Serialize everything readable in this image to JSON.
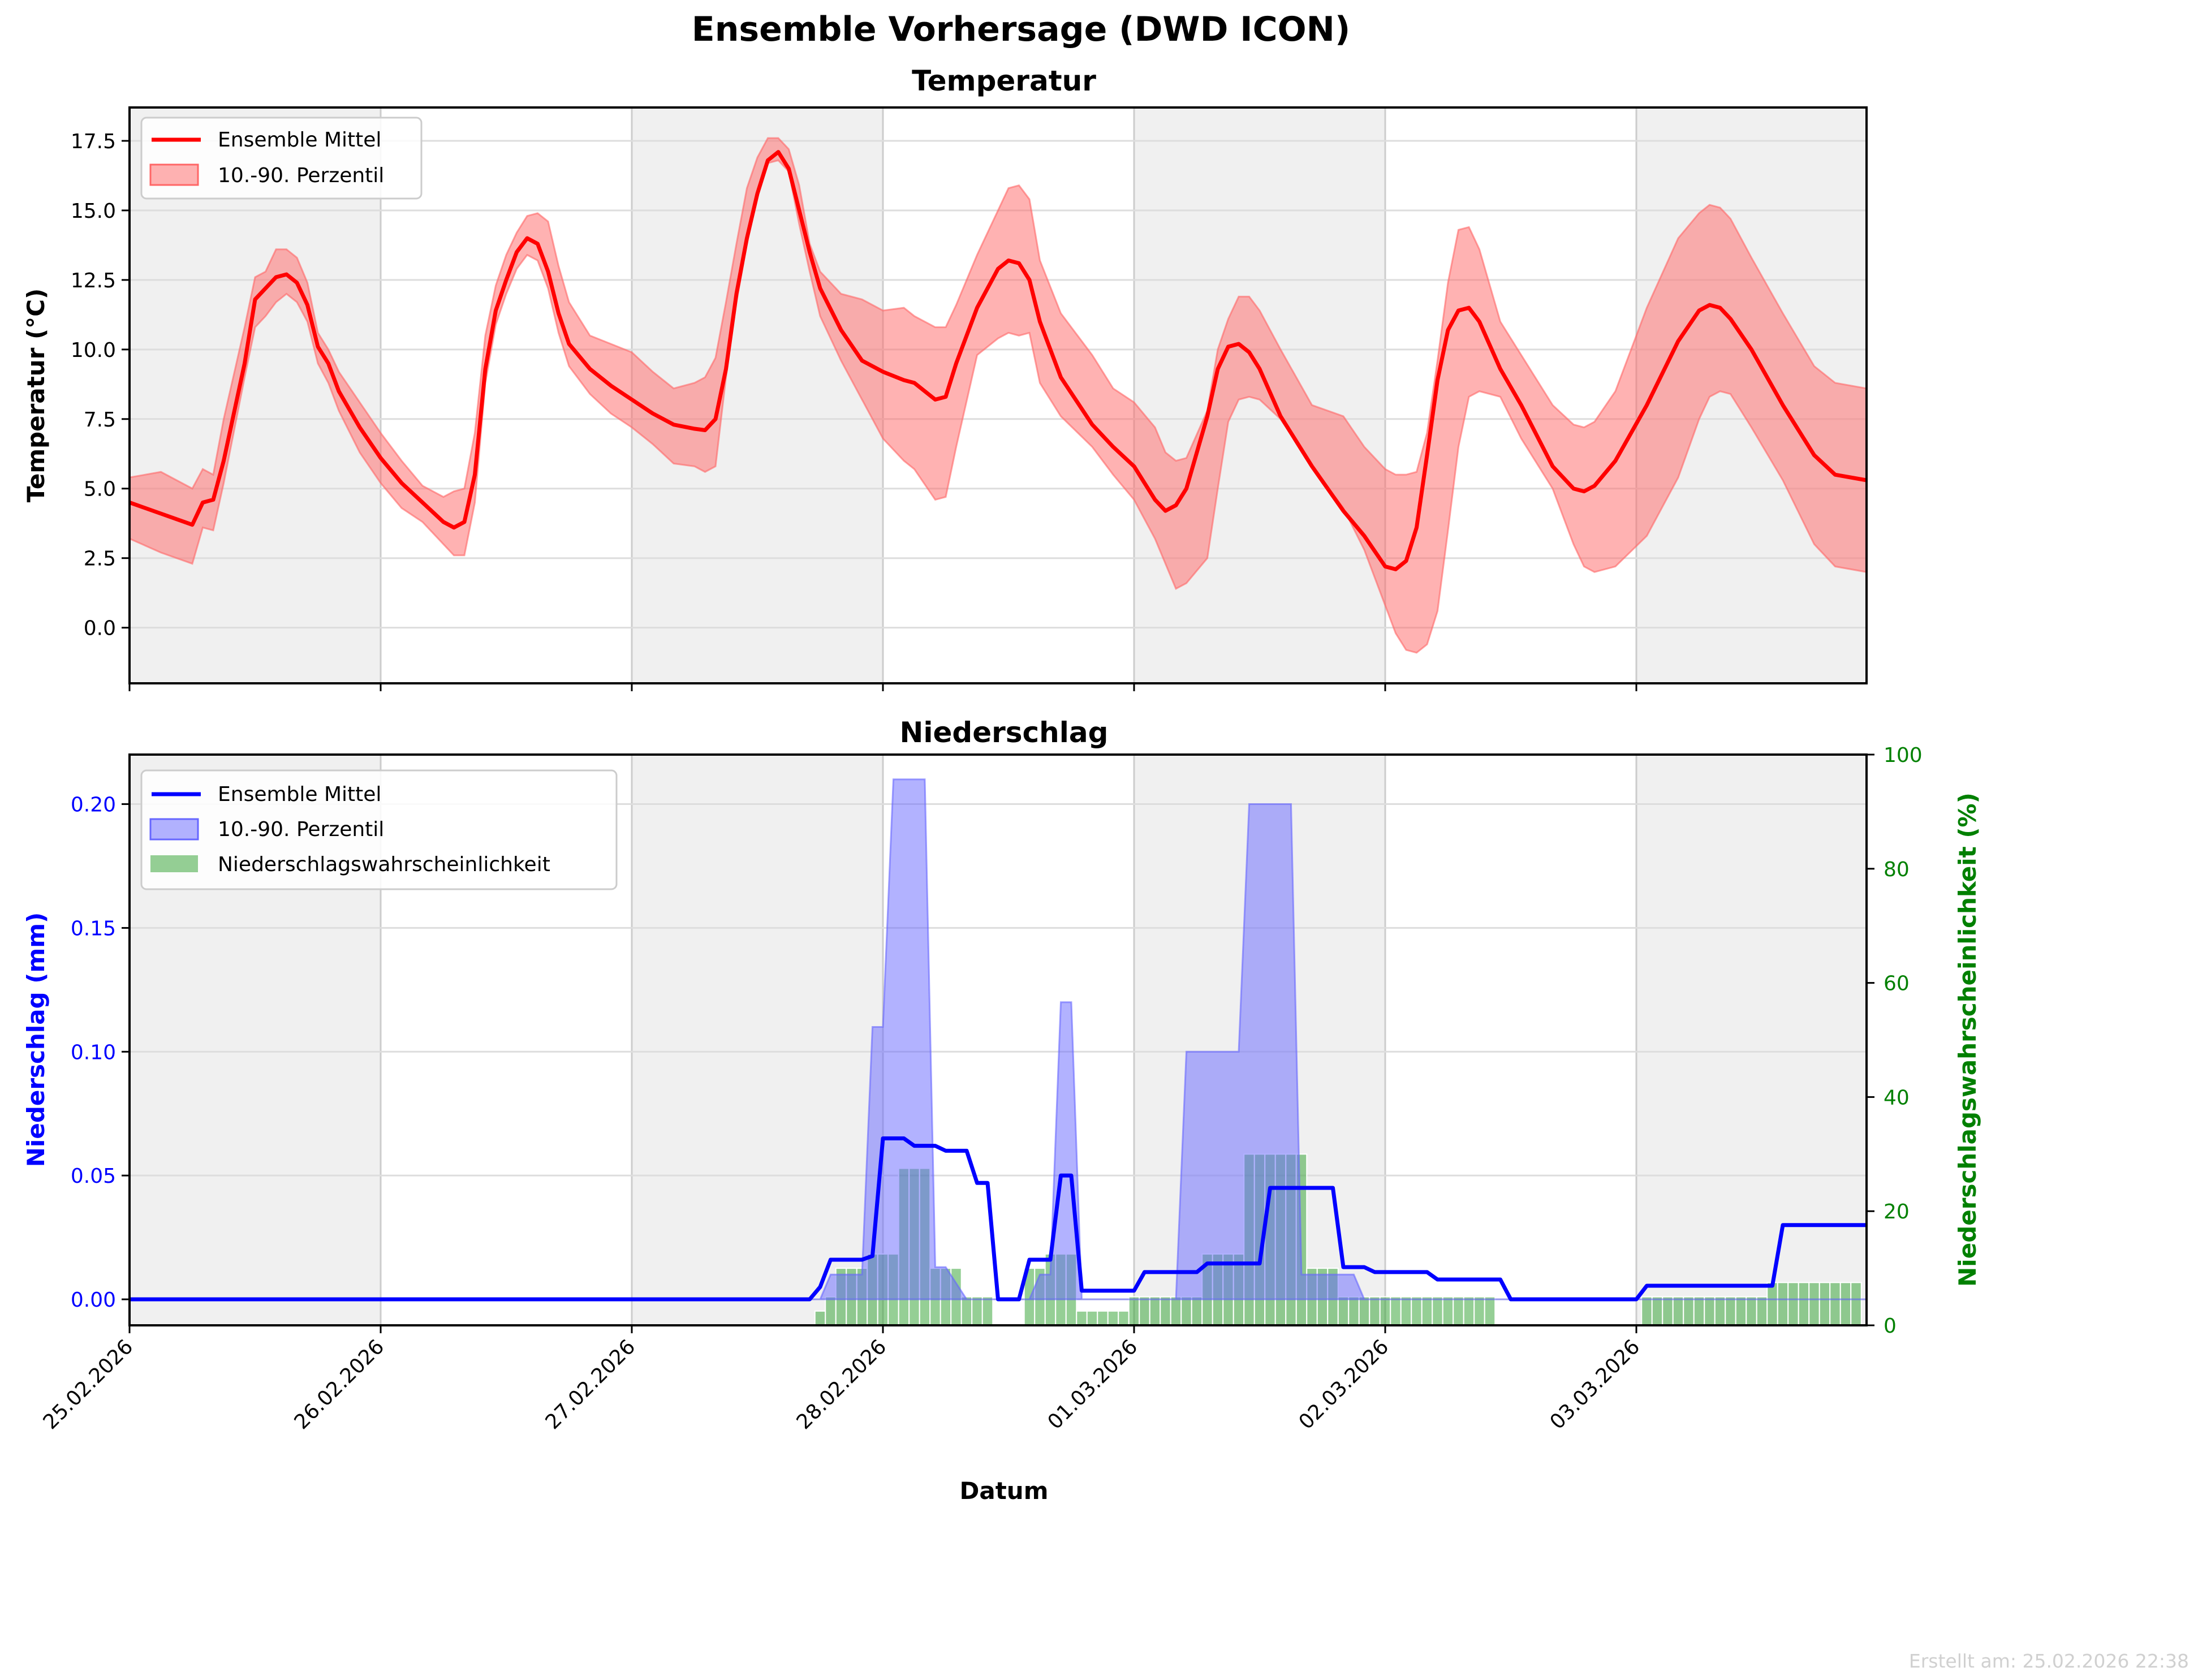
{
  "title": "Ensemble Vorhersage (DWD ICON)",
  "footer": "Erstellt am: 25.02.2026 22:38",
  "colors": {
    "temp_mean": "#ff0000",
    "temp_band": "#ff6666",
    "precip_mean": "#0000ff",
    "precip_band": "#6666ff",
    "probability": "#2ca02c",
    "right_axis": "#008000",
    "shade": "#f0f0f0",
    "grid": "#d9d9d9"
  },
  "chart_data": [
    {
      "type": "line",
      "title": "Temperatur",
      "xlabel": "",
      "ylabel": "Temperatur (°C)",
      "x_unit": "hours since 25.02.2026 00:00",
      "xlim": [
        0,
        166
      ],
      "ylim": [
        -2.0,
        18.7
      ],
      "yticks": [
        "0.0",
        "2.5",
        "5.0",
        "7.5",
        "10.0",
        "12.5",
        "15.0",
        "17.5"
      ],
      "grid": true,
      "legend": {
        "position": "top-left",
        "entries": [
          "Ensemble Mittel",
          "10.-90. Perzentil"
        ]
      },
      "series": [
        {
          "name": "Ensemble Mittel",
          "kind": "line",
          "x": [
            0,
            3,
            6,
            7,
            8,
            9,
            11,
            12,
            13,
            14,
            15,
            16,
            17,
            18,
            19,
            20,
            22,
            24,
            26,
            28,
            30,
            31,
            32,
            33,
            34,
            35,
            36,
            37,
            38,
            39,
            40,
            41,
            42,
            44,
            46,
            48,
            50,
            52,
            54,
            55,
            56,
            57,
            58,
            59,
            60,
            61,
            62,
            63,
            64,
            65,
            66,
            68,
            70,
            72,
            74,
            75,
            77,
            78,
            79,
            81,
            83,
            84,
            85,
            86,
            87,
            89,
            92,
            94,
            96,
            98,
            99,
            100,
            101,
            103,
            104,
            105,
            106,
            107,
            108,
            110,
            113,
            116,
            118,
            120,
            121,
            122,
            123,
            124,
            125,
            126,
            127,
            128,
            129,
            131,
            133,
            136,
            138,
            139,
            140,
            142,
            145,
            148,
            150,
            151,
            152,
            153,
            155,
            158,
            161,
            163,
            166
          ],
          "y": [
            4.5,
            4.1,
            3.7,
            4.5,
            4.6,
            6.0,
            9.5,
            11.8,
            12.2,
            12.6,
            12.7,
            12.4,
            11.6,
            10.1,
            9.5,
            8.5,
            7.2,
            6.1,
            5.2,
            4.5,
            3.8,
            3.6,
            3.8,
            5.5,
            9.3,
            11.4,
            12.5,
            13.5,
            14.0,
            13.8,
            12.8,
            11.3,
            10.2,
            9.3,
            8.7,
            8.2,
            7.7,
            7.3,
            7.15,
            7.1,
            7.5,
            9.3,
            12.0,
            14.0,
            15.6,
            16.8,
            17.1,
            16.5,
            15.0,
            13.5,
            12.2,
            10.7,
            9.6,
            9.2,
            8.9,
            8.8,
            8.2,
            8.3,
            9.5,
            11.5,
            12.9,
            13.2,
            13.1,
            12.5,
            11.0,
            9.0,
            7.3,
            6.5,
            5.8,
            4.6,
            4.2,
            4.4,
            5.0,
            7.6,
            9.3,
            10.1,
            10.2,
            9.9,
            9.3,
            7.6,
            5.8,
            4.2,
            3.3,
            2.2,
            2.1,
            2.4,
            3.6,
            6.2,
            8.9,
            10.7,
            11.4,
            11.5,
            11.0,
            9.3,
            8.0,
            5.8,
            5.0,
            4.9,
            5.1,
            6.0,
            8.0,
            10.3,
            11.4,
            11.6,
            11.5,
            11.1,
            10.0,
            8.0,
            6.2,
            5.5,
            5.3
          ]
        },
        {
          "name": "10.-90. Perzentil",
          "kind": "band",
          "x": [
            0,
            3,
            6,
            7,
            8,
            9,
            11,
            12,
            13,
            14,
            15,
            16,
            17,
            18,
            19,
            20,
            22,
            24,
            26,
            28,
            30,
            31,
            32,
            33,
            34,
            35,
            36,
            37,
            38,
            39,
            40,
            41,
            42,
            44,
            46,
            48,
            50,
            52,
            54,
            55,
            56,
            57,
            58,
            59,
            60,
            61,
            62,
            63,
            64,
            65,
            66,
            68,
            70,
            72,
            74,
            75,
            77,
            78,
            79,
            81,
            83,
            84,
            85,
            86,
            87,
            89,
            92,
            94,
            96,
            98,
            99,
            100,
            101,
            103,
            104,
            105,
            106,
            107,
            108,
            110,
            113,
            116,
            118,
            120,
            121,
            122,
            123,
            124,
            125,
            126,
            127,
            128,
            129,
            131,
            133,
            136,
            138,
            139,
            140,
            142,
            145,
            148,
            150,
            151,
            152,
            153,
            155,
            158,
            161,
            163,
            166
          ],
          "low": [
            3.2,
            2.7,
            2.3,
            3.6,
            3.5,
            5.2,
            9.0,
            10.8,
            11.2,
            11.7,
            12.0,
            11.7,
            11.0,
            9.5,
            8.8,
            7.8,
            6.3,
            5.2,
            4.3,
            3.8,
            3.0,
            2.6,
            2.6,
            4.5,
            8.8,
            10.9,
            12.0,
            12.9,
            13.4,
            13.2,
            12.2,
            10.6,
            9.4,
            8.4,
            7.7,
            7.2,
            6.6,
            5.9,
            5.8,
            5.6,
            5.8,
            9.0,
            11.7,
            13.8,
            15.5,
            16.7,
            16.8,
            16.4,
            14.5,
            12.8,
            11.2,
            9.6,
            8.2,
            6.8,
            6.0,
            5.7,
            4.6,
            4.7,
            6.5,
            9.8,
            10.4,
            10.6,
            10.5,
            10.6,
            8.8,
            7.6,
            6.5,
            5.5,
            4.6,
            3.2,
            2.3,
            1.4,
            1.6,
            2.5,
            5.0,
            7.4,
            8.2,
            8.3,
            8.2,
            7.5,
            5.8,
            4.3,
            2.8,
            0.8,
            -0.2,
            -0.8,
            -0.9,
            -0.6,
            0.6,
            3.5,
            6.5,
            8.3,
            8.5,
            8.3,
            6.8,
            5.0,
            3.0,
            2.2,
            2.0,
            2.2,
            3.3,
            5.4,
            7.5,
            8.3,
            8.5,
            8.4,
            7.2,
            5.3,
            3.0,
            2.2,
            2.0
          ],
          "high": [
            5.4,
            5.6,
            5.0,
            5.7,
            5.5,
            7.5,
            10.8,
            12.6,
            12.8,
            13.6,
            13.6,
            13.3,
            12.4,
            10.6,
            10.0,
            9.2,
            8.1,
            7.0,
            6.0,
            5.1,
            4.7,
            4.9,
            5.0,
            7.0,
            10.5,
            12.3,
            13.4,
            14.2,
            14.8,
            14.9,
            14.6,
            13.0,
            11.7,
            10.5,
            10.2,
            9.9,
            9.2,
            8.6,
            8.8,
            9.0,
            9.7,
            11.7,
            13.8,
            15.8,
            16.9,
            17.6,
            17.6,
            17.2,
            15.9,
            13.8,
            12.8,
            12.0,
            11.8,
            11.4,
            11.5,
            11.2,
            10.8,
            10.8,
            11.6,
            13.4,
            15.0,
            15.8,
            15.9,
            15.4,
            13.2,
            11.3,
            9.8,
            8.6,
            8.1,
            7.2,
            6.3,
            6.0,
            6.1,
            7.8,
            10.0,
            11.1,
            11.9,
            11.9,
            11.4,
            10.0,
            8.0,
            7.6,
            6.5,
            5.7,
            5.5,
            5.5,
            5.6,
            7.0,
            9.6,
            12.4,
            14.3,
            14.4,
            13.6,
            11.0,
            9.8,
            8.0,
            7.3,
            7.2,
            7.4,
            8.5,
            11.5,
            14.0,
            14.9,
            15.2,
            15.1,
            14.7,
            13.3,
            11.3,
            9.4,
            8.8,
            8.6
          ]
        }
      ]
    },
    {
      "type": "line",
      "title": "Niederschlag",
      "xlabel": "Datum",
      "ylabel": "Niederschlag (mm)",
      "ylabel_right": "Niederschlagswahrscheinlichkeit (%)",
      "x_unit": "hours since 25.02.2026 00:00",
      "xlim": [
        0,
        166
      ],
      "ylim": [
        -0.0105,
        0.22
      ],
      "ylim_right": [
        0,
        100
      ],
      "yticks": [
        "0.00",
        "0.05",
        "0.10",
        "0.15",
        "0.20"
      ],
      "yticks_right": [
        "0",
        "20",
        "40",
        "60",
        "80",
        "100"
      ],
      "xticks": [
        "25.02.2026",
        "26.02.2026",
        "27.02.2026",
        "28.02.2026",
        "01.03.2026",
        "02.03.2026",
        "03.03.2026"
      ],
      "grid": true,
      "legend": {
        "position": "top-left",
        "entries": [
          "Ensemble Mittel",
          "10.-90. Perzentil",
          "Niederschlagswahrscheinlichkeit"
        ]
      },
      "series": [
        {
          "name": "Ensemble Mittel",
          "kind": "line",
          "x": [
            0,
            65,
            66,
            67,
            70,
            71,
            72,
            74,
            75,
            77,
            78,
            80,
            81,
            82,
            83,
            85,
            86,
            88,
            89,
            90,
            91,
            96,
            97,
            102,
            103,
            108,
            109,
            115,
            116,
            118,
            119,
            124,
            125,
            131,
            132,
            144,
            145,
            157,
            158,
            166
          ],
          "y": [
            0,
            0,
            0.005,
            0.016,
            0.016,
            0.0175,
            0.065,
            0.065,
            0.062,
            0.062,
            0.06,
            0.06,
            0.047,
            0.047,
            0.0,
            0.0,
            0.016,
            0.016,
            0.05,
            0.05,
            0.0035,
            0.0035,
            0.011,
            0.011,
            0.0145,
            0.0145,
            0.045,
            0.045,
            0.013,
            0.013,
            0.011,
            0.011,
            0.008,
            0.008,
            0.0,
            0.0,
            0.0055,
            0.0055,
            0.03,
            0.03
          ]
        },
        {
          "name": "10.-90. Perzentil",
          "kind": "band",
          "x": [
            0,
            66,
            67,
            70,
            71,
            72,
            73,
            74,
            76,
            77,
            78,
            80,
            81,
            82,
            86,
            87,
            88,
            89,
            90,
            91,
            99,
            100,
            101,
            106,
            107,
            108,
            111,
            112,
            113,
            117,
            118,
            166
          ],
          "low": [
            0,
            0,
            0,
            0,
            0,
            0,
            0,
            0,
            0,
            0,
            0,
            0,
            0,
            0,
            0,
            0,
            0,
            0,
            0,
            0,
            0,
            0,
            0,
            0,
            0,
            0,
            0,
            0,
            0,
            0,
            0,
            0
          ],
          "high": [
            0,
            0,
            0.01,
            0.01,
            0.11,
            0.11,
            0.21,
            0.21,
            0.21,
            0.013,
            0.013,
            0.0,
            0.0,
            0.0,
            0.0,
            0.01,
            0.01,
            0.12,
            0.12,
            0.0,
            0.0,
            0.0,
            0.1,
            0.1,
            0.2,
            0.2,
            0.2,
            0.01,
            0.01,
            0.01,
            0.0,
            0.0
          ]
        },
        {
          "name": "Niederschlagswahrscheinlichkeit",
          "kind": "bar",
          "axis": "right",
          "x": [
            66,
            67,
            68,
            69,
            70,
            71,
            72,
            73,
            74,
            75,
            76,
            77,
            78,
            79,
            80,
            81,
            82,
            83,
            84,
            85,
            86,
            87,
            88,
            89,
            90,
            91,
            92,
            93,
            94,
            95,
            96,
            97,
            98,
            99,
            100,
            101,
            102,
            103,
            104,
            105,
            106,
            107,
            108,
            109,
            110,
            111,
            112,
            113,
            114,
            115,
            116,
            117,
            118,
            119,
            120,
            121,
            122,
            123,
            124,
            125,
            126,
            127,
            128,
            129,
            130,
            145,
            146,
            147,
            148,
            149,
            150,
            151,
            152,
            153,
            154,
            155,
            156,
            157,
            158,
            159,
            160,
            161,
            162,
            163,
            164,
            165
          ],
          "y": [
            2.5,
            5,
            10,
            10,
            10,
            12.5,
            12.5,
            12.5,
            27.5,
            27.5,
            27.5,
            10,
            10,
            10,
            5,
            5,
            5,
            0,
            0,
            0,
            10,
            10,
            12.5,
            12.5,
            12.5,
            2.5,
            2.5,
            2.5,
            2.5,
            2.5,
            5,
            5,
            5,
            5,
            5,
            5,
            5,
            12.5,
            12.5,
            12.5,
            12.5,
            30,
            30,
            30,
            30,
            30,
            30,
            10,
            10,
            10,
            5,
            5,
            5,
            5,
            5,
            5,
            5,
            5,
            5,
            5,
            5,
            5,
            5,
            5,
            5,
            5,
            5,
            5,
            5,
            5,
            5,
            5,
            5,
            5,
            5,
            5,
            5,
            7.5,
            7.5,
            7.5,
            7.5,
            7.5,
            7.5,
            7.5,
            7.5,
            7.5
          ]
        }
      ]
    }
  ]
}
